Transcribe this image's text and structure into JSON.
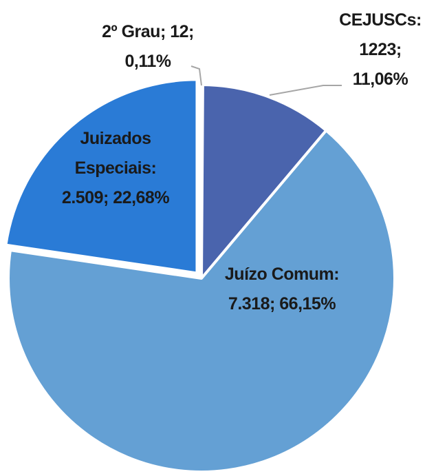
{
  "chart_data": {
    "type": "pie",
    "categories": [
      "2º Grau;",
      "CEJUSCs:",
      "Juízo Comum:",
      "Juizados Especiais:"
    ],
    "values": [
      12,
      1223,
      7318,
      2509
    ],
    "value_labels": [
      "12;",
      "1223;",
      "7.318;",
      "2.509;"
    ],
    "percents": [
      0.11,
      11.06,
      66.15,
      22.68
    ],
    "percent_labels": [
      "0,11%",
      "11,06%",
      "66,15%",
      "22,68%"
    ],
    "colors": [
      "#d9d9d9",
      "#4a64ad",
      "#64a0d4",
      "#2a7bd6"
    ],
    "exploded": [
      false,
      false,
      false,
      true
    ]
  }
}
